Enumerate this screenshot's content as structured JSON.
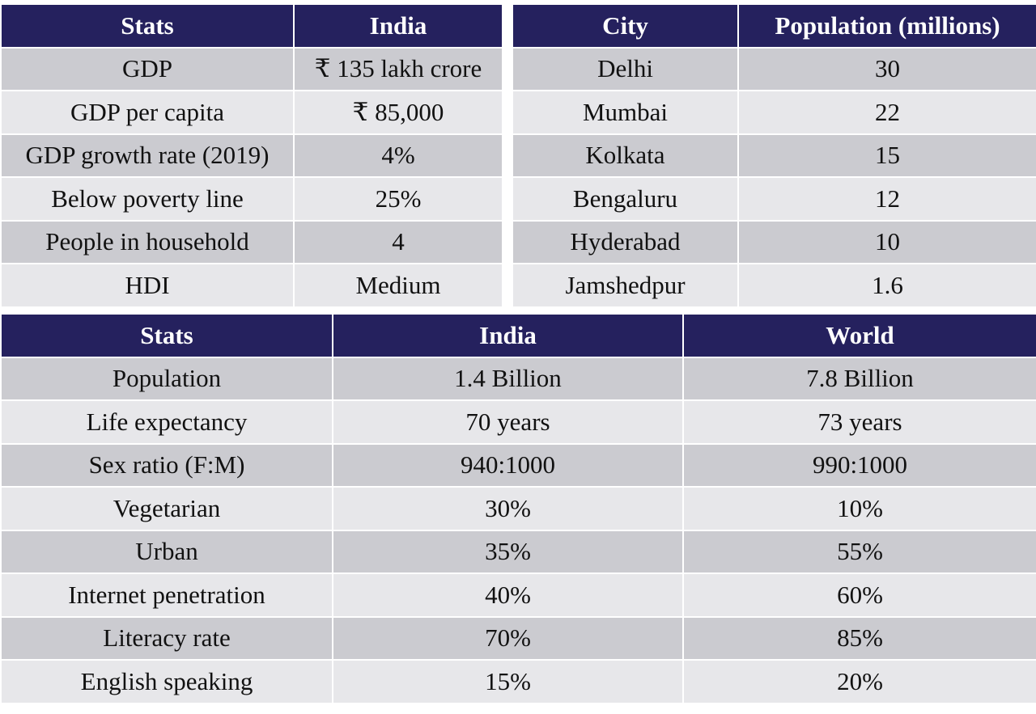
{
  "economy_table": {
    "headers": [
      "Stats",
      "India"
    ],
    "rows": [
      [
        "GDP",
        "₹ 135 lakh crore"
      ],
      [
        "GDP per capita",
        "₹ 85,000"
      ],
      [
        "GDP growth rate (2019)",
        "4%"
      ],
      [
        "Below poverty line",
        "25%"
      ],
      [
        "People in household",
        "4"
      ],
      [
        "HDI",
        "Medium"
      ]
    ]
  },
  "city_table": {
    "headers": [
      "City",
      "Population (millions)"
    ],
    "rows": [
      [
        "Delhi",
        "30"
      ],
      [
        "Mumbai",
        "22"
      ],
      [
        "Kolkata",
        "15"
      ],
      [
        "Bengaluru",
        "12"
      ],
      [
        "Hyderabad",
        "10"
      ],
      [
        "Jamshedpur",
        "1.6"
      ]
    ]
  },
  "comparison_table": {
    "headers": [
      "Stats",
      "India",
      "World"
    ],
    "rows": [
      [
        "Population",
        "1.4 Billion",
        "7.8 Billion"
      ],
      [
        "Life expectancy",
        "70 years",
        "73 years"
      ],
      [
        "Sex ratio (F:M)",
        "940:1000",
        "990:1000"
      ],
      [
        "Vegetarian",
        "30%",
        "10%"
      ],
      [
        "Urban",
        "35%",
        "55%"
      ],
      [
        "Internet penetration",
        "40%",
        "60%"
      ],
      [
        "Literacy rate",
        "70%",
        "85%"
      ],
      [
        "English speaking",
        "15%",
        "20%"
      ]
    ]
  },
  "colors": {
    "header_bg": "#25215e",
    "header_text": "#ffffff",
    "row_dark": "#cbcbd0",
    "row_light": "#e7e7ea"
  }
}
